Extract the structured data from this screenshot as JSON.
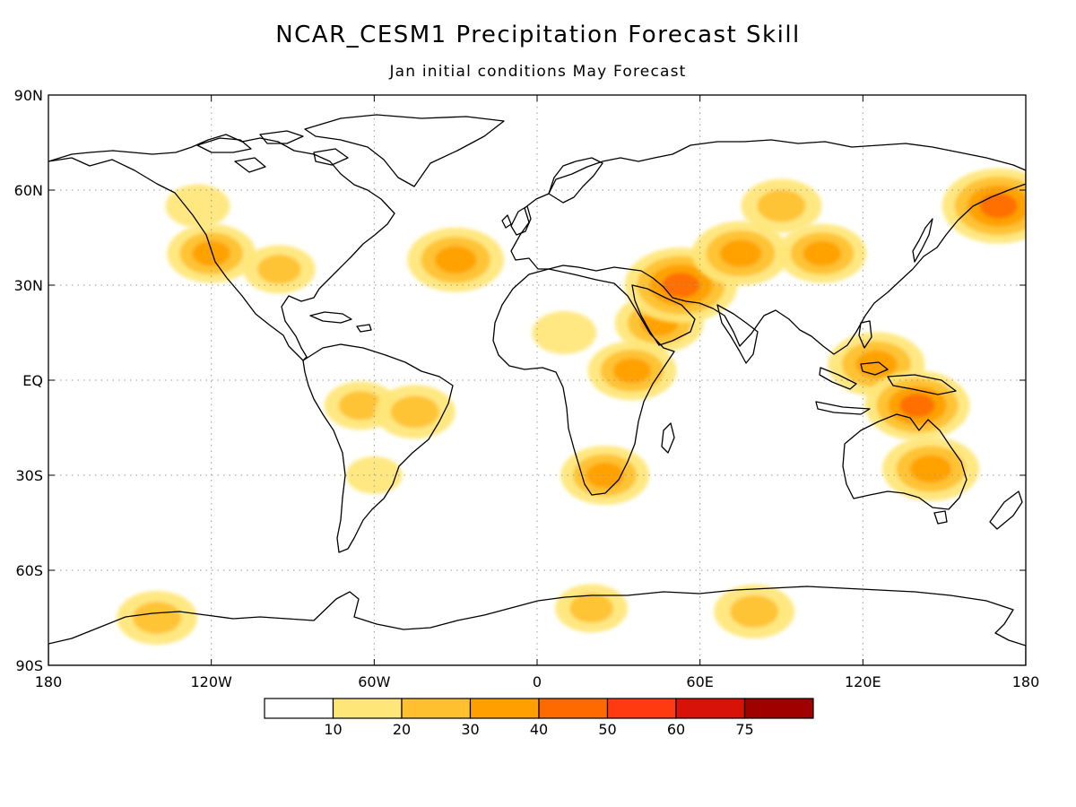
{
  "title": "NCAR_CESM1 Precipitation Forecast Skill",
  "subtitle": "Jan initial conditions   May Forecast",
  "axes": {
    "lat_labels": [
      "90N",
      "60N",
      "30N",
      "EQ",
      "30S",
      "60S",
      "90S"
    ],
    "lon_labels": [
      "180",
      "120W",
      "60W",
      "0",
      "60E",
      "120E",
      "180"
    ]
  },
  "colorbar": {
    "colors": [
      "#ffffff",
      "#ffe678",
      "#ffc030",
      "#ffa000",
      "#ff6a00",
      "#ff3a10",
      "#d81208",
      "#a00000"
    ],
    "tick_labels": [
      "10",
      "20",
      "30",
      "40",
      "50",
      "60",
      "75"
    ]
  },
  "chart_data": {
    "type": "heatmap",
    "title": "NCAR_CESM1 Precipitation Forecast Skill",
    "subtitle": "Jan initial conditions   May Forecast",
    "lon_range": [
      -180,
      180
    ],
    "lat_range": [
      -90,
      90
    ],
    "levels": [
      10,
      20,
      30,
      40,
      50,
      60,
      75
    ],
    "skill_regions": [
      {
        "lon": -120,
        "lat": 40,
        "value": 35
      },
      {
        "lon": -95,
        "lat": 35,
        "value": 25
      },
      {
        "lon": -125,
        "lat": 55,
        "value": 20
      },
      {
        "lon": -30,
        "lat": 38,
        "value": 40
      },
      {
        "lon": -65,
        "lat": -8,
        "value": 25
      },
      {
        "lon": -45,
        "lat": -10,
        "value": 30
      },
      {
        "lon": -60,
        "lat": -30,
        "value": 15
      },
      {
        "lon": 10,
        "lat": 15,
        "value": 20
      },
      {
        "lon": 45,
        "lat": 18,
        "value": 35
      },
      {
        "lon": 53,
        "lat": 30,
        "value": 50
      },
      {
        "lon": 35,
        "lat": 3,
        "value": 35
      },
      {
        "lon": 25,
        "lat": -30,
        "value": 35
      },
      {
        "lon": 75,
        "lat": 40,
        "value": 40
      },
      {
        "lon": 90,
        "lat": 55,
        "value": 30
      },
      {
        "lon": 105,
        "lat": 40,
        "value": 35
      },
      {
        "lon": 170,
        "lat": 55,
        "value": 50
      },
      {
        "lon": 125,
        "lat": 5,
        "value": 40
      },
      {
        "lon": 140,
        "lat": -8,
        "value": 45
      },
      {
        "lon": 145,
        "lat": -28,
        "value": 40
      },
      {
        "lon": -140,
        "lat": -75,
        "value": 30
      },
      {
        "lon": 80,
        "lat": -73,
        "value": 30
      },
      {
        "lon": 20,
        "lat": -72,
        "value": 25
      }
    ]
  }
}
